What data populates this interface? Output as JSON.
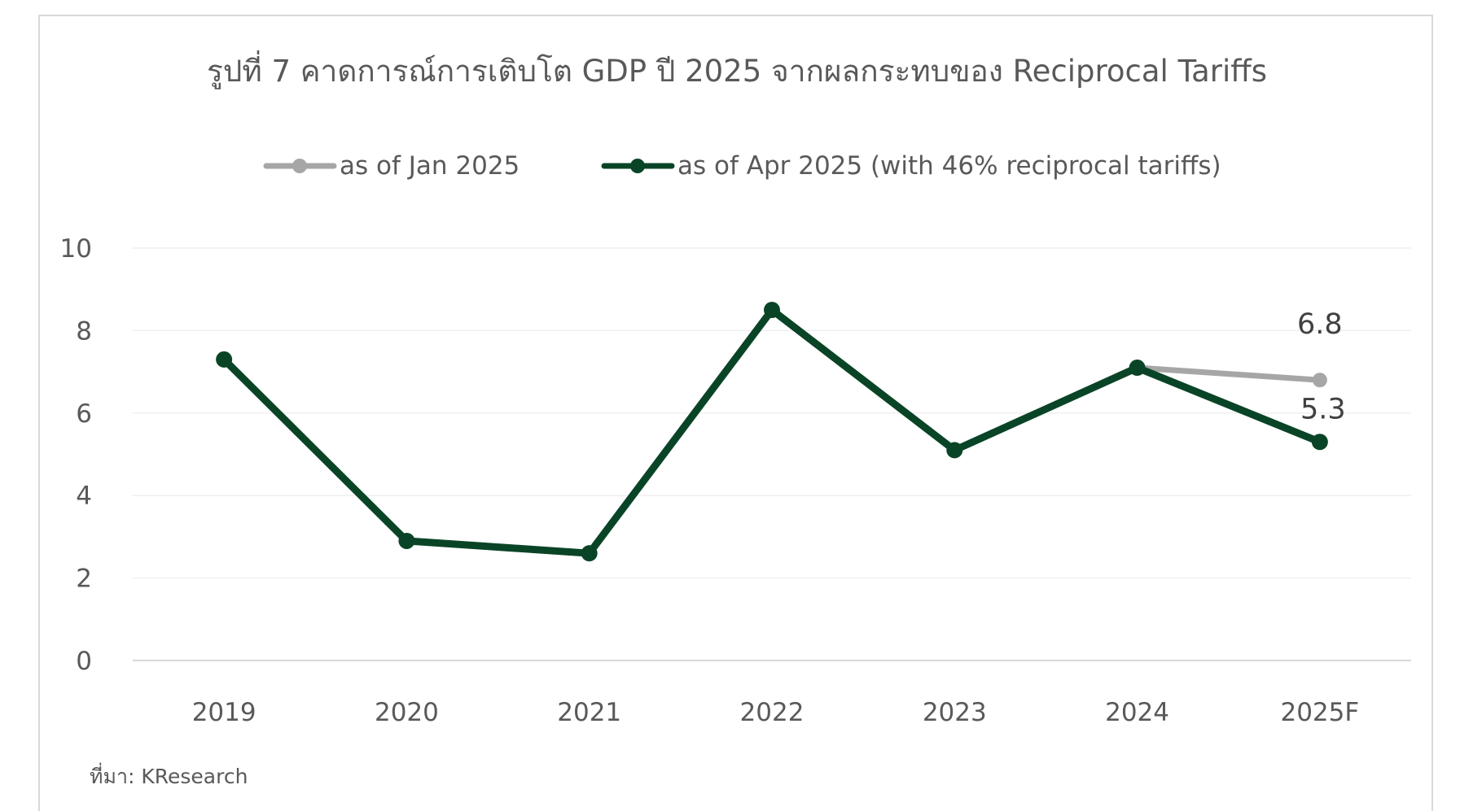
{
  "chart_data": {
    "type": "line",
    "title": "รูปที่ 7 คาดการณ์การเติบโต GDP ปี 2025 จากผลกระทบของ Reciprocal Tariffs",
    "xlabel": "",
    "ylabel": "",
    "categories": [
      "2019",
      "2020",
      "2021",
      "2022",
      "2023",
      "2024",
      "2025F"
    ],
    "ylim": [
      0,
      10
    ],
    "yticks": [
      "0",
      "2",
      "4",
      "6",
      "8",
      "10"
    ],
    "grid": "horizontal",
    "legend_position": "top",
    "series": [
      {
        "name": "as of Jan 2025",
        "color": "#a6a6a6",
        "values": [
          null,
          null,
          null,
          null,
          null,
          7.1,
          6.8
        ],
        "end_label": "6.8"
      },
      {
        "name": "as of Apr 2025 (with 46% reciprocal tariffs)",
        "color": "#0a4427",
        "values": [
          7.3,
          2.9,
          2.6,
          8.5,
          5.1,
          7.1,
          5.3
        ],
        "end_label": "5.3"
      }
    ],
    "source": "ที่มา: KResearch"
  }
}
